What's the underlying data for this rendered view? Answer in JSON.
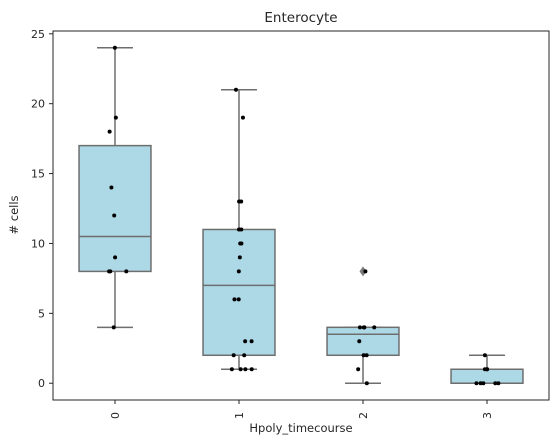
{
  "chart_data": {
    "type": "box",
    "title": "Enterocyte",
    "xlabel": "Hpoly_timecourse",
    "ylabel": "# cells",
    "ylim": [
      -1.2,
      25.2
    ],
    "yticks": [
      0,
      5,
      10,
      15,
      20,
      25
    ],
    "grid": false,
    "colors": {
      "box_fill": "#add8e6",
      "box_line": "#6e6e6e",
      "point": "#000000",
      "outlier": "#7a7a7a",
      "axis": "#262626"
    },
    "groups": [
      {
        "category": "0",
        "whisker_low": 4,
        "q1": 8,
        "median": 10.5,
        "q3": 17,
        "whisker_high": 24,
        "outliers": [],
        "points": [
          24,
          19,
          18,
          14,
          12,
          9,
          8,
          8,
          8,
          4
        ]
      },
      {
        "category": "1",
        "whisker_low": 1,
        "q1": 2,
        "median": 7,
        "q3": 11,
        "whisker_high": 21,
        "outliers": [],
        "points": [
          21,
          19,
          13,
          13,
          11,
          11,
          10,
          10,
          9,
          8,
          6,
          6,
          3,
          3,
          2,
          2,
          1,
          1,
          1,
          1
        ]
      },
      {
        "category": "2",
        "whisker_low": 0,
        "q1": 2,
        "median": 3.5,
        "q3": 4,
        "whisker_high": 4,
        "outliers": [
          8
        ],
        "points": [
          8,
          4,
          4,
          4,
          4,
          3,
          2,
          2,
          1,
          0
        ]
      },
      {
        "category": "3",
        "whisker_low": 0,
        "q1": 0,
        "median": 0,
        "q3": 1,
        "whisker_high": 2,
        "outliers": [],
        "points": [
          2,
          1,
          1,
          1,
          0,
          0,
          0,
          0,
          0
        ]
      }
    ]
  }
}
